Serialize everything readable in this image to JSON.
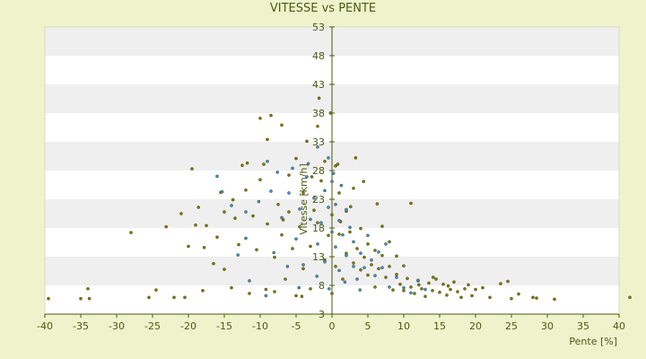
{
  "chart_data": {
    "type": "scatter",
    "title": "VITESSE vs PENTE",
    "xlabel": "Pente [%]",
    "ylabel": "Vitesse [km/h]",
    "xlim": [
      -40,
      40
    ],
    "ylim": [
      3,
      53
    ],
    "x_ticks": [
      -40,
      -35,
      -30,
      -25,
      -20,
      -15,
      -10,
      -5,
      0,
      5,
      10,
      15,
      20,
      25,
      30,
      35,
      40
    ],
    "y_ticks": [
      3,
      8,
      13,
      18,
      23,
      28,
      33,
      38,
      43,
      48,
      53
    ],
    "y_axis_position": "x=0",
    "grid": "horizontal alternating bands",
    "colors": {
      "background": "#eef3cc",
      "band_light": "#ffffff",
      "band_dark": "#efefef",
      "axis": "#4b5a12",
      "series_olive": "#7a7a12",
      "series_blue": "#3a8fd6"
    },
    "series": [
      {
        "color": "#7a7a12",
        "points": [
          [
            -39.5,
            5.7
          ],
          [
            -35,
            5.7
          ],
          [
            -34,
            7.4
          ],
          [
            -33.8,
            5.7
          ],
          [
            -28,
            17.2
          ],
          [
            -25.5,
            5.9
          ],
          [
            -24.5,
            7.2
          ],
          [
            -22,
            5.9
          ],
          [
            -21,
            20.5
          ],
          [
            -20.5,
            5.9
          ],
          [
            -20,
            14.8
          ],
          [
            -19.5,
            28.3
          ],
          [
            -19,
            18.5
          ],
          [
            -18,
            7.1
          ],
          [
            -17.8,
            14.6
          ],
          [
            -17.5,
            18.4
          ],
          [
            -16.5,
            11.8
          ],
          [
            -16,
            16.4
          ],
          [
            -15.5,
            24.2
          ],
          [
            -15,
            20.8
          ],
          [
            -15,
            10.8
          ],
          [
            -14,
            7.6
          ],
          [
            -13.5,
            19.7
          ],
          [
            -13,
            15.1
          ],
          [
            -12.5,
            28.9
          ],
          [
            -12,
            24.6
          ],
          [
            -11.5,
            6.6
          ],
          [
            -11,
            20.1
          ],
          [
            -10.5,
            14.2
          ],
          [
            -10,
            26.4
          ],
          [
            -10,
            37.1
          ],
          [
            -9.5,
            29.1
          ],
          [
            -9,
            18.7
          ],
          [
            -9,
            33.4
          ],
          [
            -8.5,
            37.6
          ],
          [
            -8,
            6.9
          ],
          [
            -8,
            12.9
          ],
          [
            -7.5,
            22.1
          ],
          [
            -7,
            35.9
          ],
          [
            -7,
            16.8
          ],
          [
            -6.5,
            9.1
          ],
          [
            -6,
            27.2
          ],
          [
            -6,
            20.8
          ],
          [
            -5.5,
            14.4
          ],
          [
            -5,
            6.2
          ],
          [
            -5,
            30.1
          ],
          [
            -4.5,
            18.2
          ],
          [
            -4,
            24.1
          ],
          [
            -4,
            10.9
          ],
          [
            -3.5,
            33.1
          ],
          [
            -3,
            14.8
          ],
          [
            -3,
            7.4
          ],
          [
            -2.5,
            21.1
          ],
          [
            -2,
            35.7
          ],
          [
            -2,
            18.9
          ],
          [
            -1.5,
            26.2
          ],
          [
            -1,
            12.4
          ],
          [
            -1,
            29.6
          ],
          [
            -0.5,
            16.7
          ],
          [
            0,
            20.3
          ],
          [
            0,
            6.6
          ],
          [
            0.5,
            28.8
          ],
          [
            0.5,
            11.3
          ],
          [
            1,
            24.1
          ],
          [
            1,
            16.9
          ],
          [
            1.5,
            9.1
          ],
          [
            2,
            20.9
          ],
          [
            2,
            13.6
          ],
          [
            2.5,
            17.3
          ],
          [
            3,
            11.9
          ],
          [
            3,
            24.9
          ],
          [
            3.5,
            14.4
          ],
          [
            4,
            10.7
          ],
          [
            4,
            17.9
          ],
          [
            4.5,
            12.9
          ],
          [
            5,
            15.2
          ],
          [
            5,
            9.8
          ],
          [
            5.5,
            11.6
          ],
          [
            6,
            14.1
          ],
          [
            6,
            7.7
          ],
          [
            6.5,
            10.9
          ],
          [
            7,
            13.2
          ],
          [
            7,
            18.3
          ],
          [
            7.5,
            9.4
          ],
          [
            8,
            11.3
          ],
          [
            8,
            15.6
          ],
          [
            8.5,
            7.2
          ],
          [
            9,
            9.9
          ],
          [
            9,
            13.1
          ],
          [
            9.5,
            8.2
          ],
          [
            10,
            7.1
          ],
          [
            10,
            11.4
          ],
          [
            10.5,
            9.2
          ],
          [
            11,
            7.7
          ],
          [
            11,
            22.3
          ],
          [
            11.5,
            6.6
          ],
          [
            12,
            8.8
          ],
          [
            12.5,
            7.4
          ],
          [
            13,
            6.1
          ],
          [
            13.5,
            8.4
          ],
          [
            14,
            7.1
          ],
          [
            14.5,
            9.1
          ],
          [
            15,
            6.8
          ],
          [
            15.5,
            8.2
          ],
          [
            16,
            6.3
          ],
          [
            16.5,
            7.3
          ],
          [
            17,
            8.6
          ],
          [
            17.5,
            6.9
          ],
          [
            18,
            5.9
          ],
          [
            18.5,
            7.4
          ],
          [
            19,
            8.1
          ],
          [
            19.5,
            6.2
          ],
          [
            20,
            7.3
          ],
          [
            21,
            7.6
          ],
          [
            22,
            5.9
          ],
          [
            23.5,
            8.3
          ],
          [
            24.5,
            8.7
          ],
          [
            25,
            5.7
          ],
          [
            26,
            6.5
          ],
          [
            28,
            5.9
          ],
          [
            28.5,
            5.8
          ],
          [
            31,
            5.6
          ],
          [
            41.5,
            5.9
          ],
          [
            -0.2,
            38
          ],
          [
            0.8,
            29.1
          ],
          [
            -1.8,
            40.6
          ],
          [
            1.2,
            19.1
          ],
          [
            -2.8,
            26.9
          ],
          [
            2.6,
            21.7
          ],
          [
            -6.8,
            19.4
          ],
          [
            -11.8,
            29.3
          ],
          [
            -13.8,
            22.9
          ],
          [
            -18.6,
            21.6
          ],
          [
            -23.1,
            18.2
          ],
          [
            -9.2,
            7.3
          ],
          [
            -4.2,
            6.1
          ],
          [
            12.1,
            8.1
          ],
          [
            14.1,
            9.4
          ],
          [
            16.2,
            7.9
          ],
          [
            3.3,
            30.2
          ],
          [
            4.4,
            26.1
          ],
          [
            6.3,
            22.2
          ]
        ]
      },
      {
        "color": "#3a8fd6",
        "points": [
          [
            -16,
            27
          ],
          [
            -14,
            21.9
          ],
          [
            -12,
            20.8
          ],
          [
            -12,
            16.2
          ],
          [
            -11.5,
            8.8
          ],
          [
            -9,
            29.6
          ],
          [
            -8.5,
            24.4
          ],
          [
            -7,
            19.8
          ],
          [
            -6,
            24.1
          ],
          [
            -5.5,
            28.4
          ],
          [
            -5,
            16.1
          ],
          [
            -4.5,
            21.3
          ],
          [
            -4,
            11.6
          ],
          [
            -3.5,
            26.9
          ],
          [
            -3,
            19.5
          ],
          [
            -2.5,
            23.2
          ],
          [
            -2,
            15.2
          ],
          [
            -2,
            32.1
          ],
          [
            -1.5,
            18.9
          ],
          [
            -1,
            24.5
          ],
          [
            -1,
            12.1
          ],
          [
            -0.5,
            21.6
          ],
          [
            -0.5,
            30.2
          ],
          [
            0,
            17.3
          ],
          [
            0,
            26.1
          ],
          [
            0.5,
            14.7
          ],
          [
            0.5,
            22.1
          ],
          [
            1,
            19.3
          ],
          [
            1,
            10.6
          ],
          [
            1.5,
            16.8
          ],
          [
            2,
            13.2
          ],
          [
            2,
            21.2
          ],
          [
            2.5,
            18.1
          ],
          [
            3,
            11.3
          ],
          [
            3,
            15.6
          ],
          [
            3.5,
            9.1
          ],
          [
            4,
            13.6
          ],
          [
            4.5,
            11.1
          ],
          [
            5,
            16.7
          ],
          [
            5.5,
            12.4
          ],
          [
            6,
            9.7
          ],
          [
            6.5,
            13.8
          ],
          [
            7,
            11.1
          ],
          [
            7.5,
            15.2
          ],
          [
            8,
            7.7
          ],
          [
            9,
            9.4
          ],
          [
            10,
            7.6
          ],
          [
            11,
            6.7
          ],
          [
            12,
            8.9
          ],
          [
            13,
            7.3
          ],
          [
            -9.2,
            6.2
          ],
          [
            -4.6,
            7.6
          ],
          [
            -2.1,
            9.6
          ],
          [
            -0.4,
            7.4
          ],
          [
            1.8,
            8.6
          ],
          [
            3.9,
            7.2
          ],
          [
            -8.1,
            13.7
          ],
          [
            -6.2,
            11.3
          ],
          [
            -13.1,
            13.3
          ],
          [
            -15.3,
            24.3
          ],
          [
            -10.2,
            22.6
          ],
          [
            -7.6,
            27.7
          ],
          [
            -3.3,
            29.2
          ],
          [
            0.2,
            27.5
          ],
          [
            1.3,
            25.4
          ]
        ]
      }
    ]
  }
}
